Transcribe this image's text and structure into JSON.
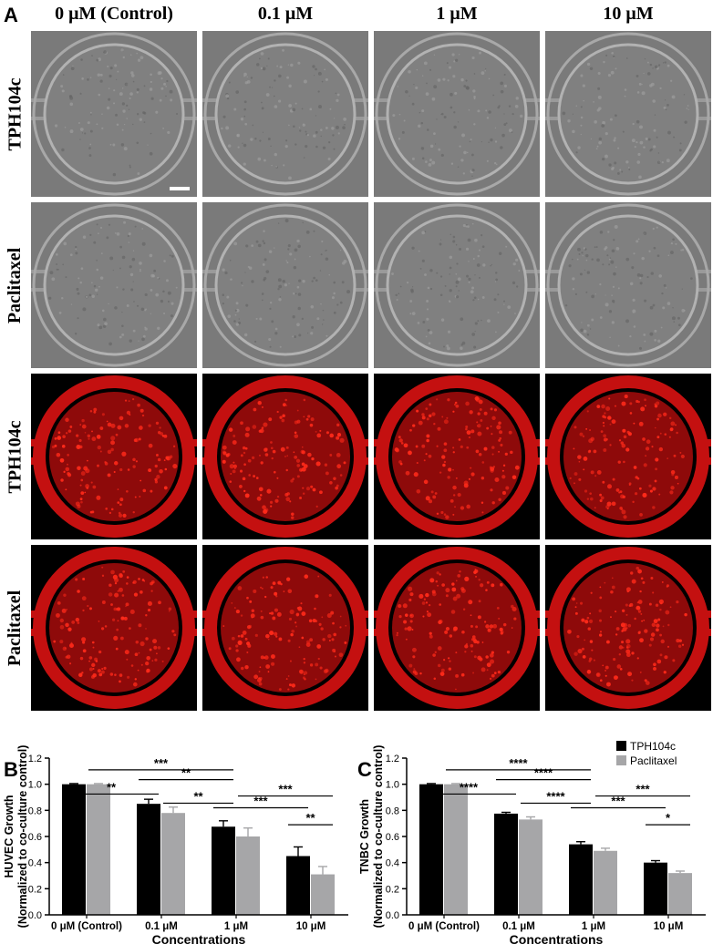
{
  "panel_labels": {
    "a": "A",
    "b": "B",
    "c": "C"
  },
  "figure_a": {
    "columns": [
      "0 μM (Control)",
      "0.1 μM",
      "1 μM",
      "10 μM"
    ],
    "rows": [
      "TPH104c",
      "Paclitaxel",
      "TPH104c",
      "Paclitaxel"
    ],
    "row_imaging": [
      "brightfield",
      "brightfield",
      "fluorescence",
      "fluorescence"
    ],
    "colors": {
      "brightfield_bg": "#7a7a7a",
      "fluorescence_bg": "#000000",
      "fluorescence_signal": "#c41010"
    }
  },
  "chart_data": [
    {
      "type": "bar",
      "categories": [
        "0 μM (Control)",
        "0.1 μM",
        "1 μM",
        "10 μM"
      ],
      "series": [
        {
          "name": "TPH104c",
          "color": "#000000",
          "values": [
            1.0,
            0.85,
            0.675,
            0.45
          ],
          "errors": [
            0.005,
            0.035,
            0.045,
            0.07
          ]
        },
        {
          "name": "Paclitaxel",
          "color": "#a6a6a8",
          "values": [
            1.0,
            0.78,
            0.6,
            0.31
          ],
          "errors": [
            0.005,
            0.045,
            0.065,
            0.06
          ]
        }
      ],
      "xlabel": "Concentrations",
      "ylabel": [
        "HUVEC Growth",
        "(Normalized to co-culture control)"
      ],
      "ylim": [
        0,
        1.2
      ],
      "yticks": [
        "0.0",
        "0.2",
        "0.4",
        "0.6",
        "0.8",
        "1.0",
        "1.2"
      ],
      "significance": [
        {
          "from": [
            0,
            0
          ],
          "to": [
            1,
            0
          ],
          "label": "**"
        },
        {
          "from": [
            0,
            1
          ],
          "to": [
            2,
            0
          ],
          "label": "***"
        },
        {
          "from": [
            1,
            0
          ],
          "to": [
            2,
            0
          ],
          "label": "**"
        },
        {
          "from": [
            1,
            1
          ],
          "to": [
            2,
            0
          ],
          "label": "**"
        },
        {
          "from": [
            2,
            0
          ],
          "to": [
            3,
            0
          ],
          "label": "***"
        },
        {
          "from": [
            2,
            1
          ],
          "to": [
            3,
            1
          ],
          "label": "***"
        },
        {
          "from": [
            3,
            0
          ],
          "to": [
            3,
            1
          ],
          "label": "**"
        }
      ]
    },
    {
      "type": "bar",
      "categories": [
        "0 μM (Control)",
        "0.1 μM",
        "1 μM",
        "10 μM"
      ],
      "series": [
        {
          "name": "TPH104c",
          "color": "#000000",
          "values": [
            1.0,
            0.775,
            0.54,
            0.4
          ],
          "errors": [
            0.005,
            0.01,
            0.02,
            0.015
          ]
        },
        {
          "name": "Paclitaxel",
          "color": "#a6a6a8",
          "values": [
            1.0,
            0.73,
            0.49,
            0.32
          ],
          "errors": [
            0.005,
            0.02,
            0.02,
            0.015
          ]
        }
      ],
      "xlabel": "Concentrations",
      "ylabel": [
        "TNBC Growth",
        "(Normalized to co-culture control)"
      ],
      "ylim": [
        0,
        1.2
      ],
      "yticks": [
        "0.0",
        "0.2",
        "0.4",
        "0.6",
        "0.8",
        "1.0",
        "1.2"
      ],
      "legend": "top-right",
      "significance": [
        {
          "from": [
            0,
            0
          ],
          "to": [
            1,
            0
          ],
          "label": "****"
        },
        {
          "from": [
            0,
            1
          ],
          "to": [
            2,
            0
          ],
          "label": "****"
        },
        {
          "from": [
            1,
            0
          ],
          "to": [
            2,
            0
          ],
          "label": "****"
        },
        {
          "from": [
            1,
            1
          ],
          "to": [
            2,
            0
          ],
          "label": "****"
        },
        {
          "from": [
            2,
            0
          ],
          "to": [
            3,
            0
          ],
          "label": "***"
        },
        {
          "from": [
            2,
            1
          ],
          "to": [
            3,
            1
          ],
          "label": "***"
        },
        {
          "from": [
            3,
            0
          ],
          "to": [
            3,
            1
          ],
          "label": "*"
        }
      ]
    }
  ]
}
